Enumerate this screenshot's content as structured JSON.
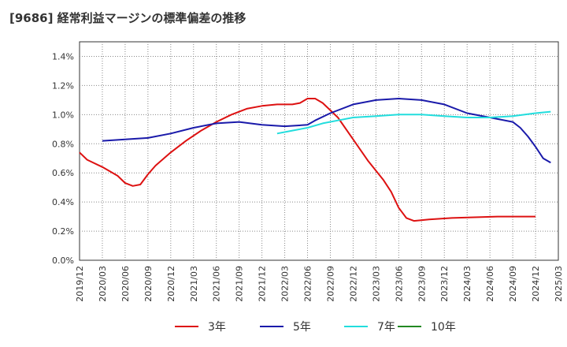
{
  "chart_data": {
    "type": "line",
    "title": "[9686]  経常利益マージンの標準偏差の推移",
    "xlabel": "",
    "ylabel": "",
    "x_tick_labels": [
      "2019/12",
      "2020/03",
      "2020/06",
      "2020/09",
      "2020/12",
      "2021/03",
      "2021/06",
      "2021/09",
      "2021/12",
      "2022/03",
      "2022/06",
      "2022/09",
      "2022/12",
      "2023/03",
      "2023/06",
      "2023/09",
      "2023/12",
      "2024/03",
      "2024/06",
      "2024/09",
      "2024/12",
      "2025/03"
    ],
    "y_tick_labels": [
      "0.0%",
      "0.2%",
      "0.4%",
      "0.6%",
      "0.8%",
      "1.0%",
      "1.2%",
      "1.4%"
    ],
    "ylim": [
      0,
      1.5
    ],
    "y_unit": "%",
    "grid": "dotted",
    "legend_position": "bottom",
    "series": [
      {
        "name": "3年",
        "color": "#dd1111",
        "points": [
          [
            "2019/12",
            0.74
          ],
          [
            "2020/01",
            0.69
          ],
          [
            "2020/03",
            0.64
          ],
          [
            "2020/05",
            0.58
          ],
          [
            "2020/06",
            0.53
          ],
          [
            "2020/07",
            0.51
          ],
          [
            "2020/08",
            0.52
          ],
          [
            "2020/09",
            0.59
          ],
          [
            "2020/10",
            0.65
          ],
          [
            "2020/12",
            0.74
          ],
          [
            "2021/02",
            0.82
          ],
          [
            "2021/04",
            0.89
          ],
          [
            "2021/06",
            0.95
          ],
          [
            "2021/08",
            1.0
          ],
          [
            "2021/10",
            1.04
          ],
          [
            "2021/12",
            1.06
          ],
          [
            "2022/02",
            1.07
          ],
          [
            "2022/04",
            1.07
          ],
          [
            "2022/05",
            1.08
          ],
          [
            "2022/06",
            1.11
          ],
          [
            "2022/07",
            1.11
          ],
          [
            "2022/08",
            1.08
          ],
          [
            "2022/10",
            0.98
          ],
          [
            "2022/12",
            0.83
          ],
          [
            "2023/02",
            0.68
          ],
          [
            "2023/04",
            0.55
          ],
          [
            "2023/05",
            0.47
          ],
          [
            "2023/06",
            0.36
          ],
          [
            "2023/07",
            0.29
          ],
          [
            "2023/08",
            0.27
          ],
          [
            "2023/10",
            0.28
          ],
          [
            "2024/01",
            0.29
          ],
          [
            "2024/04",
            0.295
          ],
          [
            "2024/07",
            0.3
          ],
          [
            "2024/10",
            0.3
          ],
          [
            "2024/12",
            0.3
          ]
        ]
      },
      {
        "name": "5年",
        "color": "#1a1aaa",
        "points": [
          [
            "2020/03",
            0.82
          ],
          [
            "2020/06",
            0.83
          ],
          [
            "2020/09",
            0.84
          ],
          [
            "2020/12",
            0.87
          ],
          [
            "2021/03",
            0.91
          ],
          [
            "2021/06",
            0.94
          ],
          [
            "2021/09",
            0.95
          ],
          [
            "2021/12",
            0.93
          ],
          [
            "2022/03",
            0.92
          ],
          [
            "2022/06",
            0.93
          ],
          [
            "2022/07",
            0.96
          ],
          [
            "2022/09",
            1.01
          ],
          [
            "2022/12",
            1.07
          ],
          [
            "2023/03",
            1.1
          ],
          [
            "2023/06",
            1.11
          ],
          [
            "2023/09",
            1.1
          ],
          [
            "2023/12",
            1.07
          ],
          [
            "2024/03",
            1.01
          ],
          [
            "2024/06",
            0.98
          ],
          [
            "2024/09",
            0.95
          ],
          [
            "2024/10",
            0.91
          ],
          [
            "2024/11",
            0.85
          ],
          [
            "2024/12",
            0.78
          ],
          [
            "2025/01",
            0.7
          ],
          [
            "2025/02",
            0.67
          ]
        ]
      },
      {
        "name": "7年",
        "color": "#22dddd",
        "points": [
          [
            "2022/02",
            0.87
          ],
          [
            "2022/04",
            0.89
          ],
          [
            "2022/06",
            0.91
          ],
          [
            "2022/08",
            0.94
          ],
          [
            "2022/10",
            0.96
          ],
          [
            "2022/12",
            0.98
          ],
          [
            "2023/03",
            0.99
          ],
          [
            "2023/06",
            1.0
          ],
          [
            "2023/09",
            1.0
          ],
          [
            "2023/12",
            0.99
          ],
          [
            "2024/03",
            0.98
          ],
          [
            "2024/06",
            0.98
          ],
          [
            "2024/09",
            0.99
          ],
          [
            "2024/12",
            1.01
          ],
          [
            "2025/02",
            1.02
          ]
        ]
      },
      {
        "name": "10年",
        "color": "#228822",
        "points": []
      }
    ]
  }
}
